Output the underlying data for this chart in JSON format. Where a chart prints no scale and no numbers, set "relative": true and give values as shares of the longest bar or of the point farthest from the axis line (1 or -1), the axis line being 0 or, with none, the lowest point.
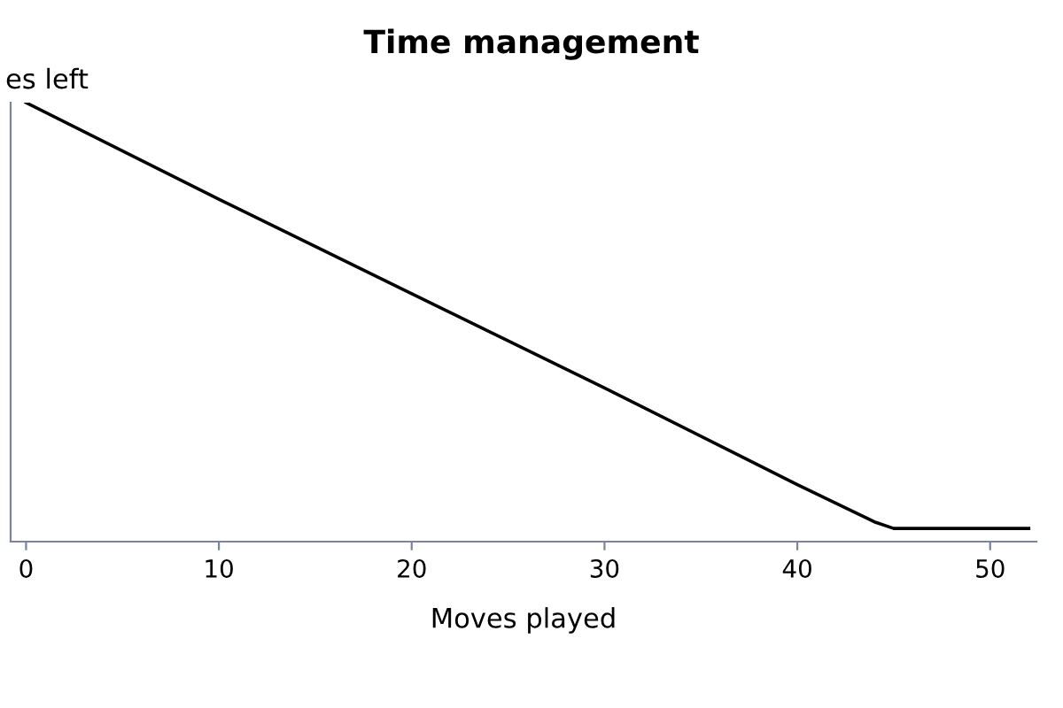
{
  "chart_data": {
    "type": "line",
    "title": "Time management",
    "xlabel": "Moves played",
    "ylabel": "es left",
    "relative": true,
    "x": [
      0,
      10,
      20,
      30,
      40,
      44,
      45,
      52
    ],
    "series": [
      {
        "color": "#000000",
        "values": [
          1,
          0.78,
          0.565,
          0.35,
          0.13,
          0.045,
          0.03,
          0.03
        ]
      }
    ],
    "xlim": [
      -0.8,
      52.4
    ],
    "xticks": [
      0,
      10,
      20,
      30,
      40,
      50
    ],
    "tick_labels": "x",
    "grid": false,
    "legend": false
  }
}
